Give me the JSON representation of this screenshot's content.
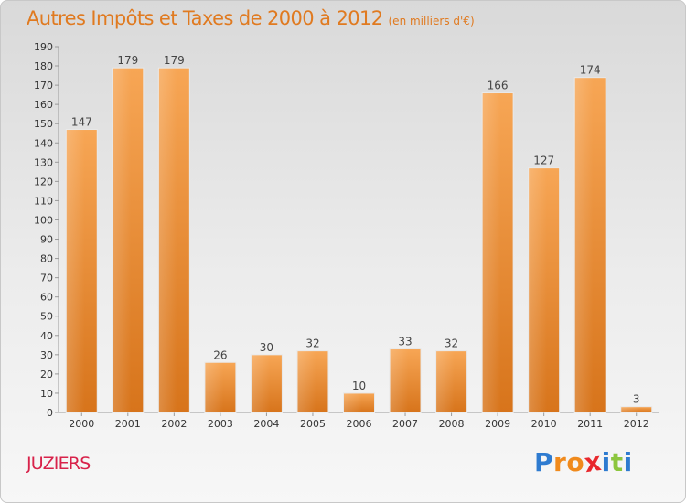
{
  "header": {
    "title": "Autres Impôts et Taxes de 2000 à 2012",
    "subtitle": "(en milliers d'€)"
  },
  "commune": "JUZIERS",
  "brand": {
    "letters": [
      "P",
      "r",
      "o",
      "x",
      "i",
      "t",
      "i"
    ],
    "colors": [
      "#2e7bd0",
      "#f08a1c",
      "#f08a1c",
      "#e8282d",
      "#2e7bd0",
      "#8cc63e",
      "#2e7bd0"
    ]
  },
  "colors": {
    "title": "#e07a20",
    "commune": "#d8224a",
    "bar_light": "#f7a655",
    "bar_dark": "#d7741b"
  },
  "chart_data": {
    "type": "bar",
    "title": "Autres Impôts et Taxes de 2000 à 2012",
    "subtitle": "(en milliers d'€)",
    "categories": [
      "2000",
      "2001",
      "2002",
      "2003",
      "2004",
      "2005",
      "2006",
      "2007",
      "2008",
      "2009",
      "2010",
      "2011",
      "2012"
    ],
    "values": [
      147,
      179,
      179,
      26,
      30,
      32,
      10,
      33,
      32,
      166,
      127,
      174,
      3
    ],
    "ylim": [
      0,
      190
    ],
    "yticks": [
      0,
      10,
      20,
      30,
      40,
      50,
      60,
      70,
      80,
      90,
      100,
      110,
      120,
      130,
      140,
      150,
      160,
      170,
      180,
      190
    ],
    "grid": false,
    "data_labels": true,
    "legend": "none"
  }
}
